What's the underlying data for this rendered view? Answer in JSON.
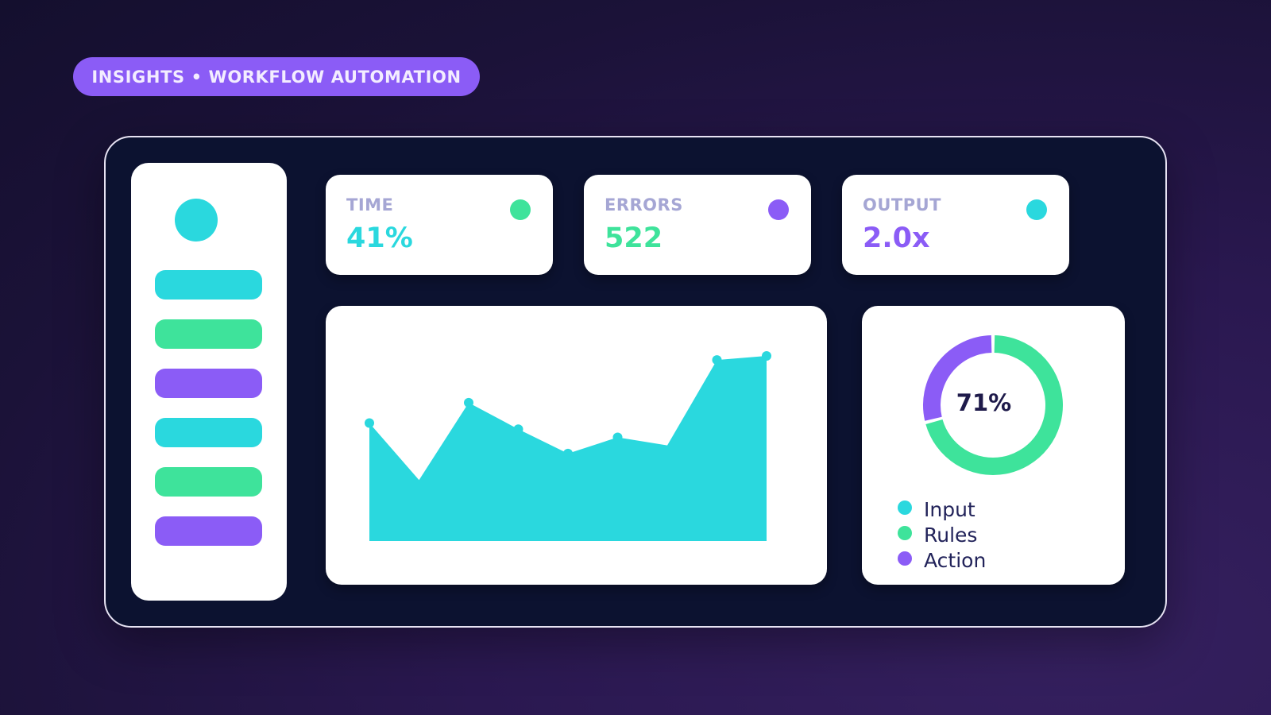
{
  "header": {
    "tag": "INSIGHTS • WORKFLOW AUTOMATION"
  },
  "colors": {
    "cyan": "#2ad8de",
    "green": "#3ee39b",
    "purple": "#8b5cf6",
    "panel": "#0c1230"
  },
  "sidebar": {
    "avatar_icon": "avatar-circle",
    "items": [
      {
        "color": "cyan"
      },
      {
        "color": "green"
      },
      {
        "color": "purple"
      },
      {
        "color": "cyan"
      },
      {
        "color": "green"
      },
      {
        "color": "purple"
      }
    ]
  },
  "kpis": [
    {
      "label": "TIME",
      "value": "41%",
      "color": "#2ad8de",
      "dot": "#3ee39b"
    },
    {
      "label": "ERRORS",
      "value": "522",
      "color": "#3ee39b",
      "dot": "#8b5cf6"
    },
    {
      "label": "OUTPUT",
      "value": "2.0x",
      "color": "#8b5cf6",
      "dot": "#2ad8de"
    }
  ],
  "chart_data": [
    {
      "type": "area",
      "x": [
        1,
        2,
        3,
        4,
        5,
        6,
        7,
        8,
        9
      ],
      "series": [
        {
          "values": [
            58,
            30,
            68,
            55,
            43,
            51,
            47,
            89,
            91
          ],
          "color": "#2ad8de"
        }
      ],
      "ylim": [
        0,
        100
      ],
      "markers": [
        true,
        false,
        true,
        true,
        true,
        true,
        false,
        true,
        true
      ],
      "grid": false
    },
    {
      "type": "pie",
      "categories": [
        "Input",
        "Rules",
        "Action"
      ],
      "values": [
        0,
        71,
        29
      ],
      "colors": [
        "#2ad8de",
        "#3ee39b",
        "#8b5cf6"
      ],
      "center_label": "71%",
      "legend": "bottom"
    }
  ]
}
